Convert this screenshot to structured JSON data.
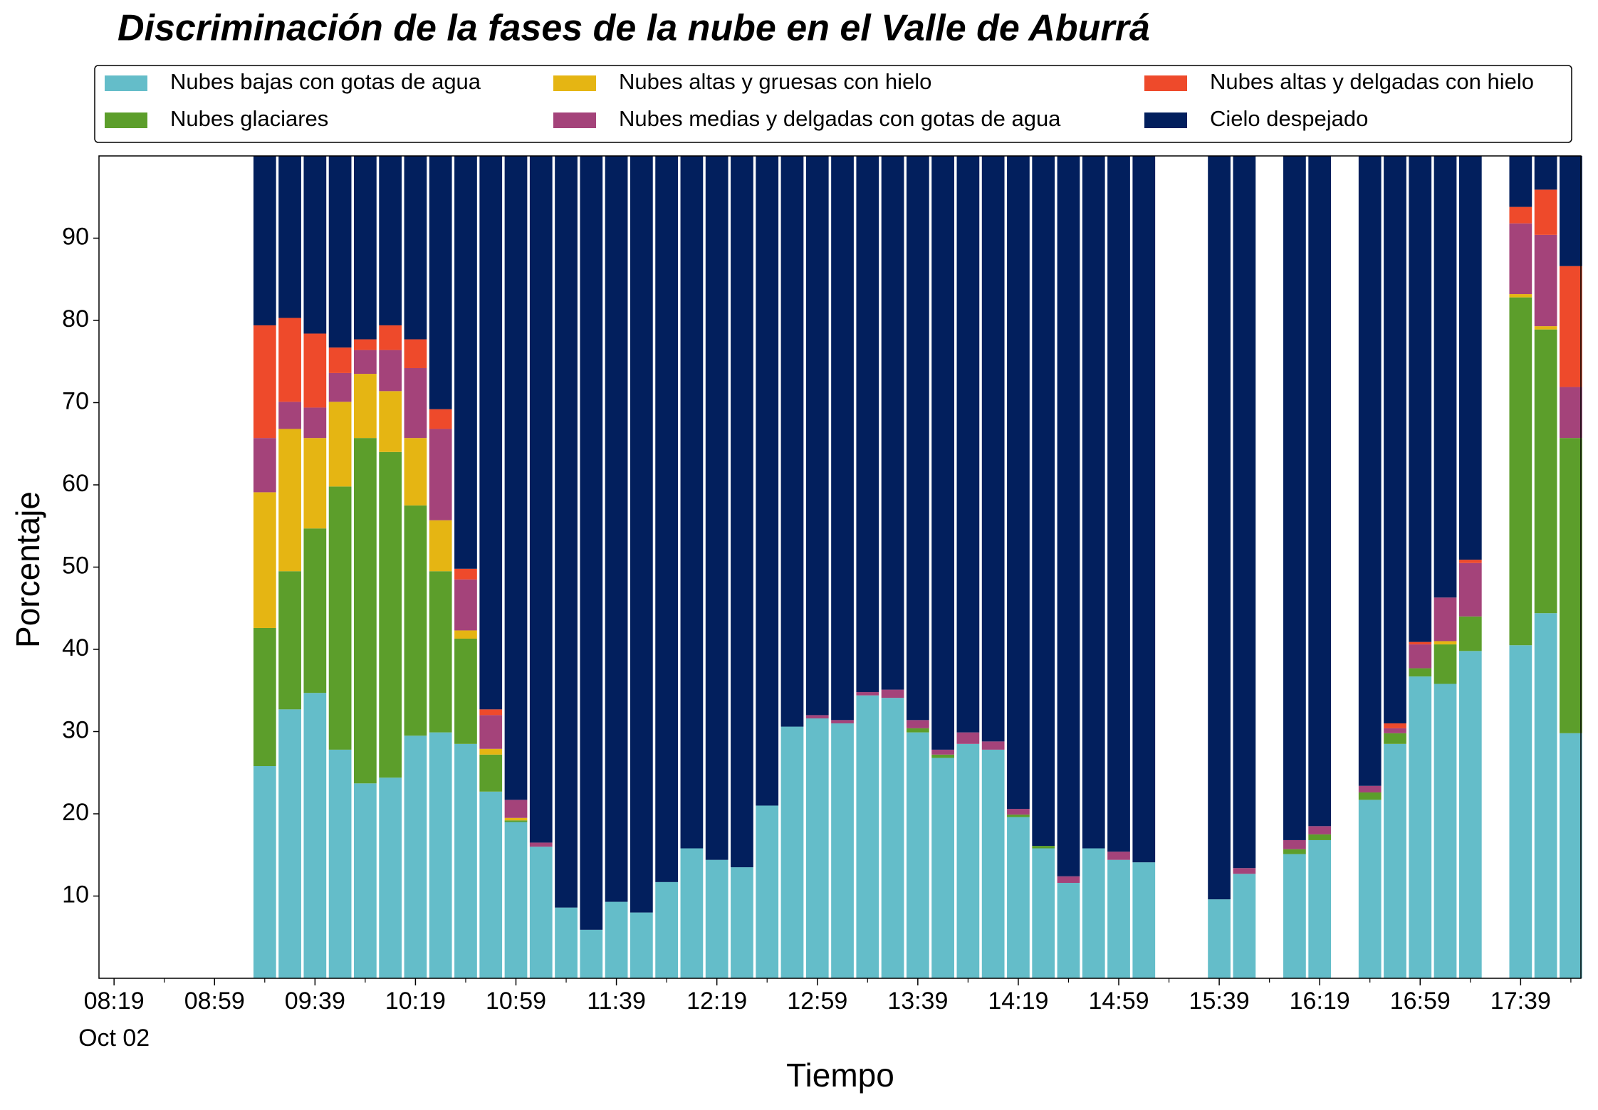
{
  "chart_data": {
    "type": "stacked_bar",
    "title": "Discriminación de la fases de la nube en el Valle de Aburrá",
    "xlabel": "Tiempo",
    "ylabel": "Porcentaje",
    "x_date_label": "Oct 02",
    "x": [
      "09:19",
      "09:29",
      "09:39",
      "09:49",
      "09:59",
      "10:09",
      "10:19",
      "10:29",
      "10:39",
      "10:49",
      "10:59",
      "11:09",
      "11:19",
      "11:29",
      "11:39",
      "11:49",
      "11:59",
      "12:09",
      "12:19",
      "12:29",
      "12:39",
      "12:49",
      "12:59",
      "13:09",
      "13:19",
      "13:29",
      "13:39",
      "13:49",
      "13:59",
      "14:09",
      "14:19",
      "14:29",
      "14:39",
      "14:49",
      "14:59",
      "15:09",
      "15:39",
      "15:49",
      "16:09",
      "16:19",
      "16:39",
      "16:49",
      "16:59",
      "17:09",
      "17:19",
      "17:39",
      "17:49",
      "17:59"
    ],
    "series": [
      {
        "name": "Nubes bajas con gotas de agua",
        "color": "#64bdc9",
        "values": [
          25.8,
          32.7,
          34.7,
          27.8,
          23.7,
          24.4,
          29.5,
          29.9,
          28.5,
          22.7,
          19.0,
          16.0,
          8.6,
          5.9,
          9.3,
          8.0,
          11.7,
          15.8,
          14.4,
          13.5,
          21.0,
          30.6,
          31.6,
          31.0,
          34.4,
          34.1,
          29.9,
          26.8,
          28.5,
          27.8,
          19.6,
          15.8,
          11.6,
          15.8,
          14.4,
          14.1,
          9.6,
          12.7,
          15.1,
          16.8,
          21.7,
          28.5,
          36.7,
          35.8,
          39.8,
          40.5,
          44.4,
          29.8
        ]
      },
      {
        "name": "Nubes glaciares",
        "color": "#5c9e2b",
        "values": [
          16.8,
          16.8,
          20.0,
          32.0,
          42.0,
          39.6,
          28.0,
          19.6,
          12.8,
          4.5,
          0.2,
          0,
          0,
          0,
          0,
          0,
          0,
          0,
          0,
          0,
          0,
          0,
          0,
          0,
          0,
          0,
          0.5,
          0.4,
          0,
          0,
          0.3,
          0.3,
          0,
          0,
          0,
          0,
          0,
          0,
          0.6,
          0.7,
          0.9,
          1.3,
          1.0,
          4.8,
          4.2,
          42.3,
          34.5,
          35.9
        ]
      },
      {
        "name": "Nubes altas y gruesas con hielo",
        "color": "#e5b513",
        "values": [
          16.5,
          17.3,
          11.0,
          10.3,
          7.8,
          7.4,
          8.2,
          6.2,
          1.0,
          0.7,
          0.3,
          0,
          0,
          0,
          0,
          0,
          0,
          0,
          0,
          0,
          0,
          0,
          0,
          0,
          0,
          0,
          0,
          0,
          0,
          0,
          0,
          0,
          0,
          0,
          0,
          0,
          0,
          0,
          0,
          0,
          0,
          0,
          0,
          0.4,
          0,
          0.4,
          0.4,
          0
        ]
      },
      {
        "name": "Nubes medias y delgadas con gotas de agua",
        "color": "#a4437a",
        "values": [
          6.6,
          3.3,
          3.7,
          3.5,
          2.9,
          5.0,
          8.5,
          11.1,
          6.2,
          4.1,
          2.2,
          0.5,
          0,
          0,
          0,
          0,
          0,
          0,
          0,
          0,
          0,
          0,
          0.4,
          0.4,
          0.4,
          1.0,
          1.0,
          0.6,
          1.4,
          1.0,
          0.7,
          0,
          0.8,
          0,
          1.0,
          0,
          0,
          0.7,
          1.1,
          1.0,
          0.8,
          0.6,
          2.9,
          5.3,
          6.5,
          8.6,
          11.1,
          6.2
        ]
      },
      {
        "name": "Nubes altas y delgadas con hielo",
        "color": "#ee4a2b",
        "values": [
          13.7,
          10.2,
          9.0,
          3.1,
          1.3,
          3.0,
          3.5,
          2.4,
          1.3,
          0.7,
          0,
          0,
          0,
          0,
          0,
          0,
          0,
          0,
          0,
          0,
          0,
          0,
          0,
          0,
          0,
          0,
          0,
          0,
          0,
          0,
          0,
          0,
          0,
          0,
          0,
          0,
          0,
          0,
          0,
          0,
          0,
          0.6,
          0.3,
          0,
          0.4,
          2.0,
          5.5,
          14.7
        ]
      },
      {
        "name": "Cielo despejado",
        "color": "#021f5d",
        "values": [
          20.6,
          19.7,
          21.6,
          23.3,
          22.3,
          20.6,
          22.3,
          30.8,
          50.2,
          67.3,
          78.3,
          83.5,
          91.4,
          94.1,
          90.7,
          92.0,
          88.3,
          84.2,
          85.6,
          86.5,
          79.0,
          69.4,
          68.0,
          68.6,
          65.2,
          64.9,
          68.6,
          72.2,
          70.1,
          71.2,
          79.4,
          83.9,
          87.6,
          84.2,
          84.6,
          85.9,
          90.4,
          86.6,
          83.2,
          81.5,
          76.6,
          69.0,
          59.1,
          53.7,
          49.1,
          6.2,
          4.1,
          13.4
        ]
      }
    ],
    "xlim": [
      "08:13",
      "18:03"
    ],
    "xticks": [
      "08:19",
      "08:59",
      "09:39",
      "10:19",
      "10:59",
      "11:39",
      "12:19",
      "12:59",
      "13:39",
      "14:19",
      "14:59",
      "15:39",
      "16:19",
      "16:59",
      "17:39"
    ],
    "xminorticks": [
      "08:39",
      "09:19",
      "09:59",
      "10:39",
      "11:19",
      "11:59",
      "12:39",
      "13:19",
      "13:59",
      "14:39",
      "15:19",
      "15:59",
      "16:39",
      "17:19",
      "17:59"
    ],
    "ylim": [
      0,
      100
    ],
    "yticks": [
      10,
      20,
      30,
      40,
      50,
      60,
      70,
      80,
      90
    ],
    "legend": "top"
  }
}
